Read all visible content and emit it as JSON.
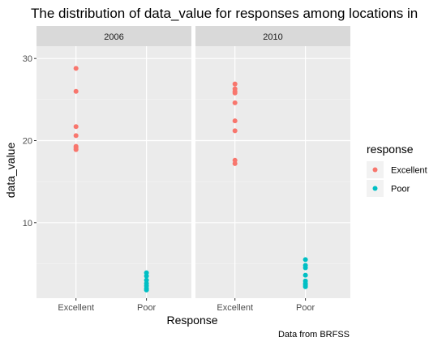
{
  "chart_data": {
    "type": "scatter",
    "title": "The distribution of data_value for responses among locations in",
    "xlabel": "Response",
    "ylabel": "data_value",
    "caption": "Data from BRFSS",
    "categories": [
      "Excellent",
      "Poor"
    ],
    "ylim": [
      0.8,
      31.5
    ],
    "yticks": [
      10,
      20,
      30
    ],
    "grid": true,
    "legend": {
      "title": "response",
      "placement": "right",
      "entries": [
        {
          "label": "Excellent",
          "color": "#F8766D"
        },
        {
          "label": "Poor",
          "color": "#00BFC4"
        }
      ]
    },
    "facets": [
      {
        "label": "2006",
        "series": [
          {
            "name": "Excellent",
            "values": [
              28.8,
              26.0,
              21.7,
              20.6,
              19.3,
              19.1,
              18.9
            ]
          },
          {
            "name": "Poor",
            "values": [
              3.9,
              3.5,
              3.0,
              2.6,
              2.3,
              2.0,
              1.8
            ]
          }
        ]
      },
      {
        "label": "2010",
        "series": [
          {
            "name": "Excellent",
            "values": [
              26.9,
              26.3,
              26.0,
              25.8,
              24.6,
              22.4,
              21.2,
              17.6,
              17.2
            ]
          },
          {
            "name": "Poor",
            "values": [
              5.5,
              4.8,
              4.5,
              3.6,
              2.9,
              2.6,
              2.4,
              2.2
            ]
          }
        ]
      }
    ]
  }
}
